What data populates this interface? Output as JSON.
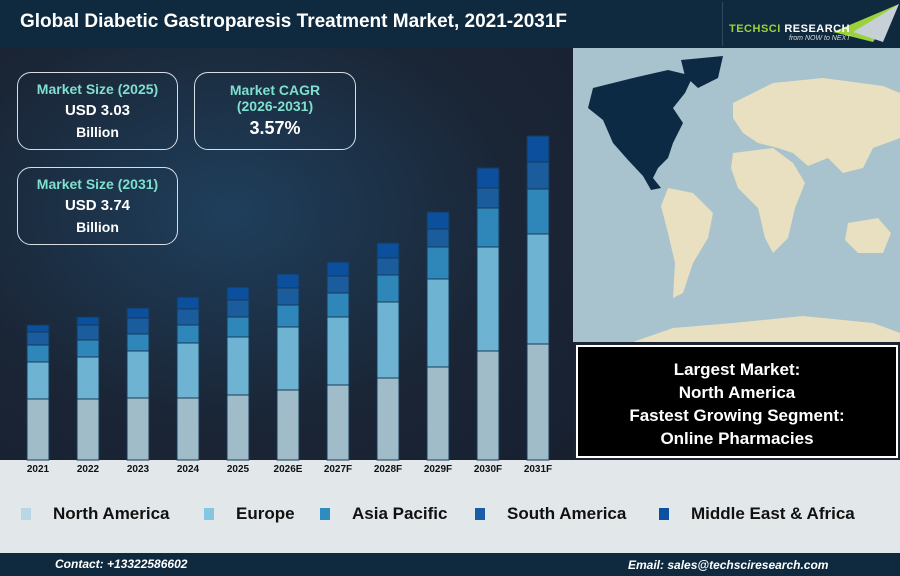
{
  "header": {
    "title": "Global Diabetic Gastroparesis Treatment Market, 2021-2031F",
    "logo_text": "TechSci Research",
    "logo_tagline": "from NOW to NEXT"
  },
  "stats": [
    {
      "heading": "Market Size (2025)",
      "value": "USD 3.03",
      "unit": "Billion"
    },
    {
      "heading": "Market CAGR",
      "heading2": "(2026-2031)",
      "value": "3.57%"
    },
    {
      "heading": "Market Size (2031)",
      "value": "USD 3.74",
      "unit": "Billion"
    }
  ],
  "callout": {
    "line1": "Largest Market:",
    "line2": "North America",
    "line3": "Fastest Growing Segment:",
    "line4": "Online Pharmacies"
  },
  "footer": {
    "contact": "Contact: +13322586602",
    "email": "Email: sales@techsciresearch.com"
  },
  "colors": {
    "header": "#0f2a3e",
    "accent_text": "#7fe0cf",
    "map_water": "#a8c3cd",
    "map_land": "#e8e0c0",
    "map_highlight": "#0d2a45"
  },
  "chart_data": {
    "type": "bar",
    "stacked": true,
    "categories": [
      "2021",
      "2022",
      "2023",
      "2024",
      "2025",
      "2026E",
      "2027F",
      "2028F",
      "2029F",
      "2030F",
      "2031F"
    ],
    "series": [
      {
        "name": "North America",
        "color": "#a0bcc8",
        "values": [
          61,
          61,
          62,
          62,
          65,
          70,
          75,
          82,
          93,
          109,
          116
        ]
      },
      {
        "name": "Europe",
        "color": "#6eb4d2",
        "values": [
          37,
          42,
          47,
          55,
          58,
          63,
          68,
          76,
          88,
          104,
          110
        ]
      },
      {
        "name": "Asia Pacific",
        "color": "#2f86b8",
        "values": [
          17,
          17,
          17,
          18,
          20,
          22,
          24,
          27,
          32,
          39,
          45
        ]
      },
      {
        "name": "South America",
        "color": "#1a5c9c",
        "values": [
          13,
          15,
          16,
          16,
          17,
          17,
          17,
          17,
          18,
          20,
          27
        ]
      },
      {
        "name": "Middle East & Africa",
        "color": "#0c4f9c",
        "values": [
          7,
          8,
          10,
          12,
          13,
          14,
          14,
          15,
          17,
          20,
          26
        ]
      }
    ],
    "yaxis_visible": false,
    "grid": false,
    "legend": "bottom"
  }
}
